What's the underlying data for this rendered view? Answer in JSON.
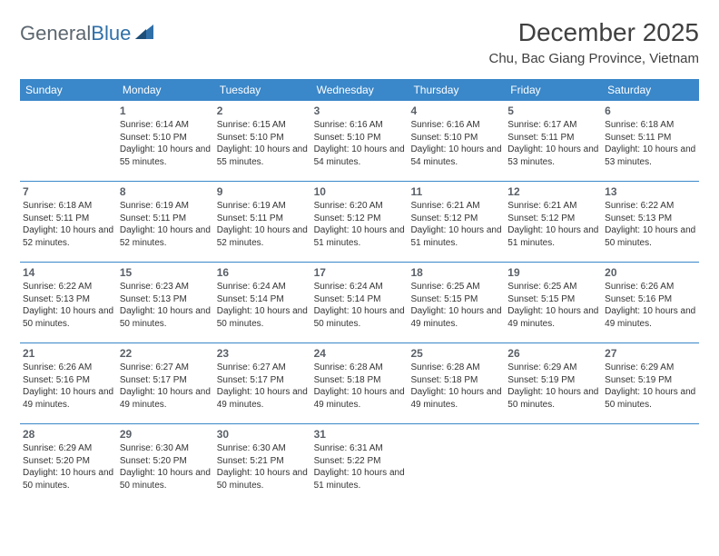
{
  "brand": {
    "general": "General",
    "blue": "Blue"
  },
  "title": "December 2025",
  "location": "Chu, Bac Giang Province, Vietnam",
  "colors": {
    "header_bg": "#3a87c9",
    "header_text": "#ffffff",
    "body_text": "#333333",
    "daynum": "#5a6068",
    "logo_gray": "#5d6770",
    "logo_blue": "#2f6fa8",
    "divider": "#3a87c9",
    "page_bg": "#ffffff"
  },
  "day_names": [
    "Sunday",
    "Monday",
    "Tuesday",
    "Wednesday",
    "Thursday",
    "Friday",
    "Saturday"
  ],
  "weeks": [
    [
      {
        "n": "",
        "sr": "",
        "ss": "",
        "dl": ""
      },
      {
        "n": "1",
        "sr": "Sunrise: 6:14 AM",
        "ss": "Sunset: 5:10 PM",
        "dl": "Daylight: 10 hours and 55 minutes."
      },
      {
        "n": "2",
        "sr": "Sunrise: 6:15 AM",
        "ss": "Sunset: 5:10 PM",
        "dl": "Daylight: 10 hours and 55 minutes."
      },
      {
        "n": "3",
        "sr": "Sunrise: 6:16 AM",
        "ss": "Sunset: 5:10 PM",
        "dl": "Daylight: 10 hours and 54 minutes."
      },
      {
        "n": "4",
        "sr": "Sunrise: 6:16 AM",
        "ss": "Sunset: 5:10 PM",
        "dl": "Daylight: 10 hours and 54 minutes."
      },
      {
        "n": "5",
        "sr": "Sunrise: 6:17 AM",
        "ss": "Sunset: 5:11 PM",
        "dl": "Daylight: 10 hours and 53 minutes."
      },
      {
        "n": "6",
        "sr": "Sunrise: 6:18 AM",
        "ss": "Sunset: 5:11 PM",
        "dl": "Daylight: 10 hours and 53 minutes."
      }
    ],
    [
      {
        "n": "7",
        "sr": "Sunrise: 6:18 AM",
        "ss": "Sunset: 5:11 PM",
        "dl": "Daylight: 10 hours and 52 minutes."
      },
      {
        "n": "8",
        "sr": "Sunrise: 6:19 AM",
        "ss": "Sunset: 5:11 PM",
        "dl": "Daylight: 10 hours and 52 minutes."
      },
      {
        "n": "9",
        "sr": "Sunrise: 6:19 AM",
        "ss": "Sunset: 5:11 PM",
        "dl": "Daylight: 10 hours and 52 minutes."
      },
      {
        "n": "10",
        "sr": "Sunrise: 6:20 AM",
        "ss": "Sunset: 5:12 PM",
        "dl": "Daylight: 10 hours and 51 minutes."
      },
      {
        "n": "11",
        "sr": "Sunrise: 6:21 AM",
        "ss": "Sunset: 5:12 PM",
        "dl": "Daylight: 10 hours and 51 minutes."
      },
      {
        "n": "12",
        "sr": "Sunrise: 6:21 AM",
        "ss": "Sunset: 5:12 PM",
        "dl": "Daylight: 10 hours and 51 minutes."
      },
      {
        "n": "13",
        "sr": "Sunrise: 6:22 AM",
        "ss": "Sunset: 5:13 PM",
        "dl": "Daylight: 10 hours and 50 minutes."
      }
    ],
    [
      {
        "n": "14",
        "sr": "Sunrise: 6:22 AM",
        "ss": "Sunset: 5:13 PM",
        "dl": "Daylight: 10 hours and 50 minutes."
      },
      {
        "n": "15",
        "sr": "Sunrise: 6:23 AM",
        "ss": "Sunset: 5:13 PM",
        "dl": "Daylight: 10 hours and 50 minutes."
      },
      {
        "n": "16",
        "sr": "Sunrise: 6:24 AM",
        "ss": "Sunset: 5:14 PM",
        "dl": "Daylight: 10 hours and 50 minutes."
      },
      {
        "n": "17",
        "sr": "Sunrise: 6:24 AM",
        "ss": "Sunset: 5:14 PM",
        "dl": "Daylight: 10 hours and 50 minutes."
      },
      {
        "n": "18",
        "sr": "Sunrise: 6:25 AM",
        "ss": "Sunset: 5:15 PM",
        "dl": "Daylight: 10 hours and 49 minutes."
      },
      {
        "n": "19",
        "sr": "Sunrise: 6:25 AM",
        "ss": "Sunset: 5:15 PM",
        "dl": "Daylight: 10 hours and 49 minutes."
      },
      {
        "n": "20",
        "sr": "Sunrise: 6:26 AM",
        "ss": "Sunset: 5:16 PM",
        "dl": "Daylight: 10 hours and 49 minutes."
      }
    ],
    [
      {
        "n": "21",
        "sr": "Sunrise: 6:26 AM",
        "ss": "Sunset: 5:16 PM",
        "dl": "Daylight: 10 hours and 49 minutes."
      },
      {
        "n": "22",
        "sr": "Sunrise: 6:27 AM",
        "ss": "Sunset: 5:17 PM",
        "dl": "Daylight: 10 hours and 49 minutes."
      },
      {
        "n": "23",
        "sr": "Sunrise: 6:27 AM",
        "ss": "Sunset: 5:17 PM",
        "dl": "Daylight: 10 hours and 49 minutes."
      },
      {
        "n": "24",
        "sr": "Sunrise: 6:28 AM",
        "ss": "Sunset: 5:18 PM",
        "dl": "Daylight: 10 hours and 49 minutes."
      },
      {
        "n": "25",
        "sr": "Sunrise: 6:28 AM",
        "ss": "Sunset: 5:18 PM",
        "dl": "Daylight: 10 hours and 49 minutes."
      },
      {
        "n": "26",
        "sr": "Sunrise: 6:29 AM",
        "ss": "Sunset: 5:19 PM",
        "dl": "Daylight: 10 hours and 50 minutes."
      },
      {
        "n": "27",
        "sr": "Sunrise: 6:29 AM",
        "ss": "Sunset: 5:19 PM",
        "dl": "Daylight: 10 hours and 50 minutes."
      }
    ],
    [
      {
        "n": "28",
        "sr": "Sunrise: 6:29 AM",
        "ss": "Sunset: 5:20 PM",
        "dl": "Daylight: 10 hours and 50 minutes."
      },
      {
        "n": "29",
        "sr": "Sunrise: 6:30 AM",
        "ss": "Sunset: 5:20 PM",
        "dl": "Daylight: 10 hours and 50 minutes."
      },
      {
        "n": "30",
        "sr": "Sunrise: 6:30 AM",
        "ss": "Sunset: 5:21 PM",
        "dl": "Daylight: 10 hours and 50 minutes."
      },
      {
        "n": "31",
        "sr": "Sunrise: 6:31 AM",
        "ss": "Sunset: 5:22 PM",
        "dl": "Daylight: 10 hours and 51 minutes."
      },
      {
        "n": "",
        "sr": "",
        "ss": "",
        "dl": ""
      },
      {
        "n": "",
        "sr": "",
        "ss": "",
        "dl": ""
      },
      {
        "n": "",
        "sr": "",
        "ss": "",
        "dl": ""
      }
    ]
  ]
}
